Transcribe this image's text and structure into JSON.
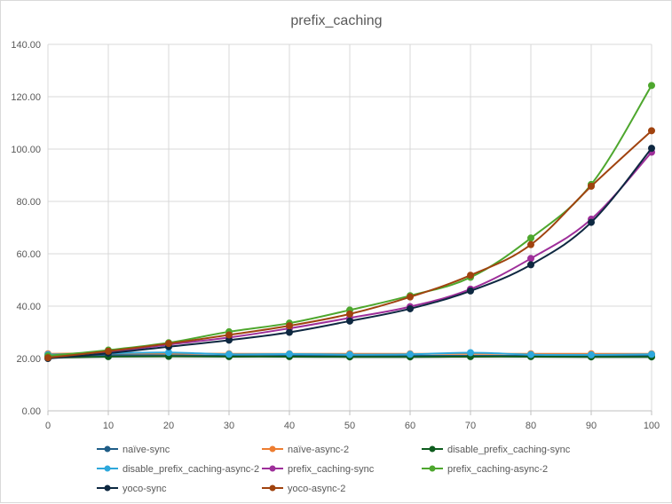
{
  "chart_data": {
    "type": "line",
    "title": "prefix_caching",
    "xlabel": "",
    "ylabel": "",
    "x": [
      0,
      10,
      20,
      30,
      40,
      50,
      60,
      70,
      80,
      90,
      100
    ],
    "xlim": [
      0,
      100
    ],
    "ylim": [
      0,
      140
    ],
    "x_ticks": [
      "0",
      "10",
      "20",
      "30",
      "40",
      "50",
      "60",
      "70",
      "80",
      "90",
      "100"
    ],
    "y_ticks": [
      "0.00",
      "20.00",
      "40.00",
      "60.00",
      "80.00",
      "100.00",
      "120.00",
      "140.00"
    ],
    "grid": true,
    "legend_position": "bottom",
    "series": [
      {
        "name": "naïve-sync",
        "color": "#1f5d87",
        "values": [
          20.8,
          21.3,
          21.2,
          21.0,
          21.0,
          21.0,
          21.0,
          21.0,
          21.0,
          21.0,
          21.0
        ]
      },
      {
        "name": "naïve-async-2",
        "color": "#ed7d31",
        "values": [
          21.8,
          22.0,
          21.9,
          21.8,
          21.8,
          21.8,
          21.8,
          21.8,
          21.8,
          21.8,
          21.8
        ]
      },
      {
        "name": "disable_prefix_caching-sync",
        "color": "#0e5c1e",
        "values": [
          20.3,
          20.7,
          20.8,
          20.7,
          20.7,
          20.6,
          20.6,
          20.7,
          20.7,
          20.6,
          20.6
        ]
      },
      {
        "name": "disable_prefix_caching-async-2",
        "color": "#2ea8dc",
        "values": [
          21.5,
          22.0,
          22.3,
          21.6,
          21.7,
          21.5,
          21.6,
          22.2,
          21.5,
          21.4,
          21.6
        ]
      },
      {
        "name": "prefix_caching-sync",
        "color": "#9e2f9a",
        "values": [
          20.5,
          22.5,
          25.3,
          28.0,
          31.5,
          35.5,
          39.8,
          46.5,
          58.2,
          73.2,
          98.8
        ]
      },
      {
        "name": "prefix_caching-async-2",
        "color": "#4ea72e",
        "values": [
          21.0,
          23.2,
          26.0,
          30.2,
          33.5,
          38.5,
          44.0,
          51.0,
          66.0,
          86.5,
          124.3
        ]
      },
      {
        "name": "yoco-sync",
        "color": "#0e2841",
        "values": [
          20.0,
          22.0,
          24.5,
          27.0,
          30.0,
          34.3,
          39.0,
          45.8,
          55.8,
          72.0,
          100.3
        ]
      },
      {
        "name": "yoco-async-2",
        "color": "#a0430f",
        "values": [
          20.3,
          22.8,
          25.7,
          29.0,
          32.5,
          37.0,
          43.5,
          51.8,
          63.5,
          85.8,
          107.0
        ]
      }
    ]
  }
}
